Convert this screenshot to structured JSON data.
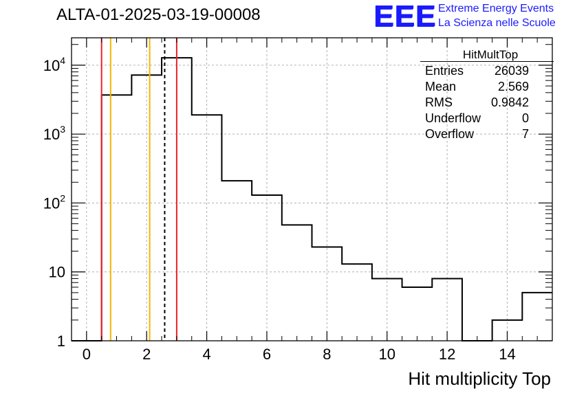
{
  "run_title": "ALTA-01-2025-03-19-00008",
  "logo": {
    "text": "EEE",
    "line1": "Extreme Energy Events",
    "line2": "La Scienza nelle Scuole",
    "color": "#1a1aff"
  },
  "stats": {
    "title": "HitMultTop",
    "rows": [
      {
        "label": "Entries",
        "value": "26039"
      },
      {
        "label": "Mean",
        "value": "2.569"
      },
      {
        "label": "RMS",
        "value": "0.9842"
      },
      {
        "label": "Underflow",
        "value": "0"
      },
      {
        "label": "Overflow",
        "value": "7"
      }
    ]
  },
  "chart_data": {
    "type": "histogram",
    "title": "ALTA-01-2025-03-19-00008",
    "xlabel": "Hit multiplicity Top",
    "ylabel": "",
    "yscale": "log",
    "xlim": [
      -0.5,
      15.5
    ],
    "ylim": [
      1,
      25000
    ],
    "grid": true,
    "x_ticks": [
      "0",
      "2",
      "4",
      "6",
      "8",
      "10",
      "12",
      "14"
    ],
    "y_ticks": [
      "1",
      "10",
      "10^2",
      "10^3",
      "10^4"
    ],
    "bin_width": 1,
    "bins": [
      {
        "x": 0,
        "count": 0
      },
      {
        "x": 1,
        "count": 3700
      },
      {
        "x": 2,
        "count": 7200
      },
      {
        "x": 3,
        "count": 12800
      },
      {
        "x": 4,
        "count": 1900
      },
      {
        "x": 5,
        "count": 210
      },
      {
        "x": 6,
        "count": 130
      },
      {
        "x": 7,
        "count": 48
      },
      {
        "x": 8,
        "count": 23
      },
      {
        "x": 9,
        "count": 13
      },
      {
        "x": 10,
        "count": 8
      },
      {
        "x": 11,
        "count": 6
      },
      {
        "x": 12,
        "count": 8
      },
      {
        "x": 13,
        "count": 0
      },
      {
        "x": 14,
        "count": 2
      },
      {
        "x": 15,
        "count": 5
      }
    ],
    "vlines": [
      {
        "x": 0.5,
        "color": "#e8202a",
        "style": "solid"
      },
      {
        "x": 0.8,
        "color": "#f2b600",
        "style": "solid"
      },
      {
        "x": 2.1,
        "color": "#f2b600",
        "style": "solid"
      },
      {
        "x": 2.6,
        "color": "#000000",
        "style": "dashed"
      },
      {
        "x": 3.0,
        "color": "#e8202a",
        "style": "solid"
      }
    ]
  }
}
